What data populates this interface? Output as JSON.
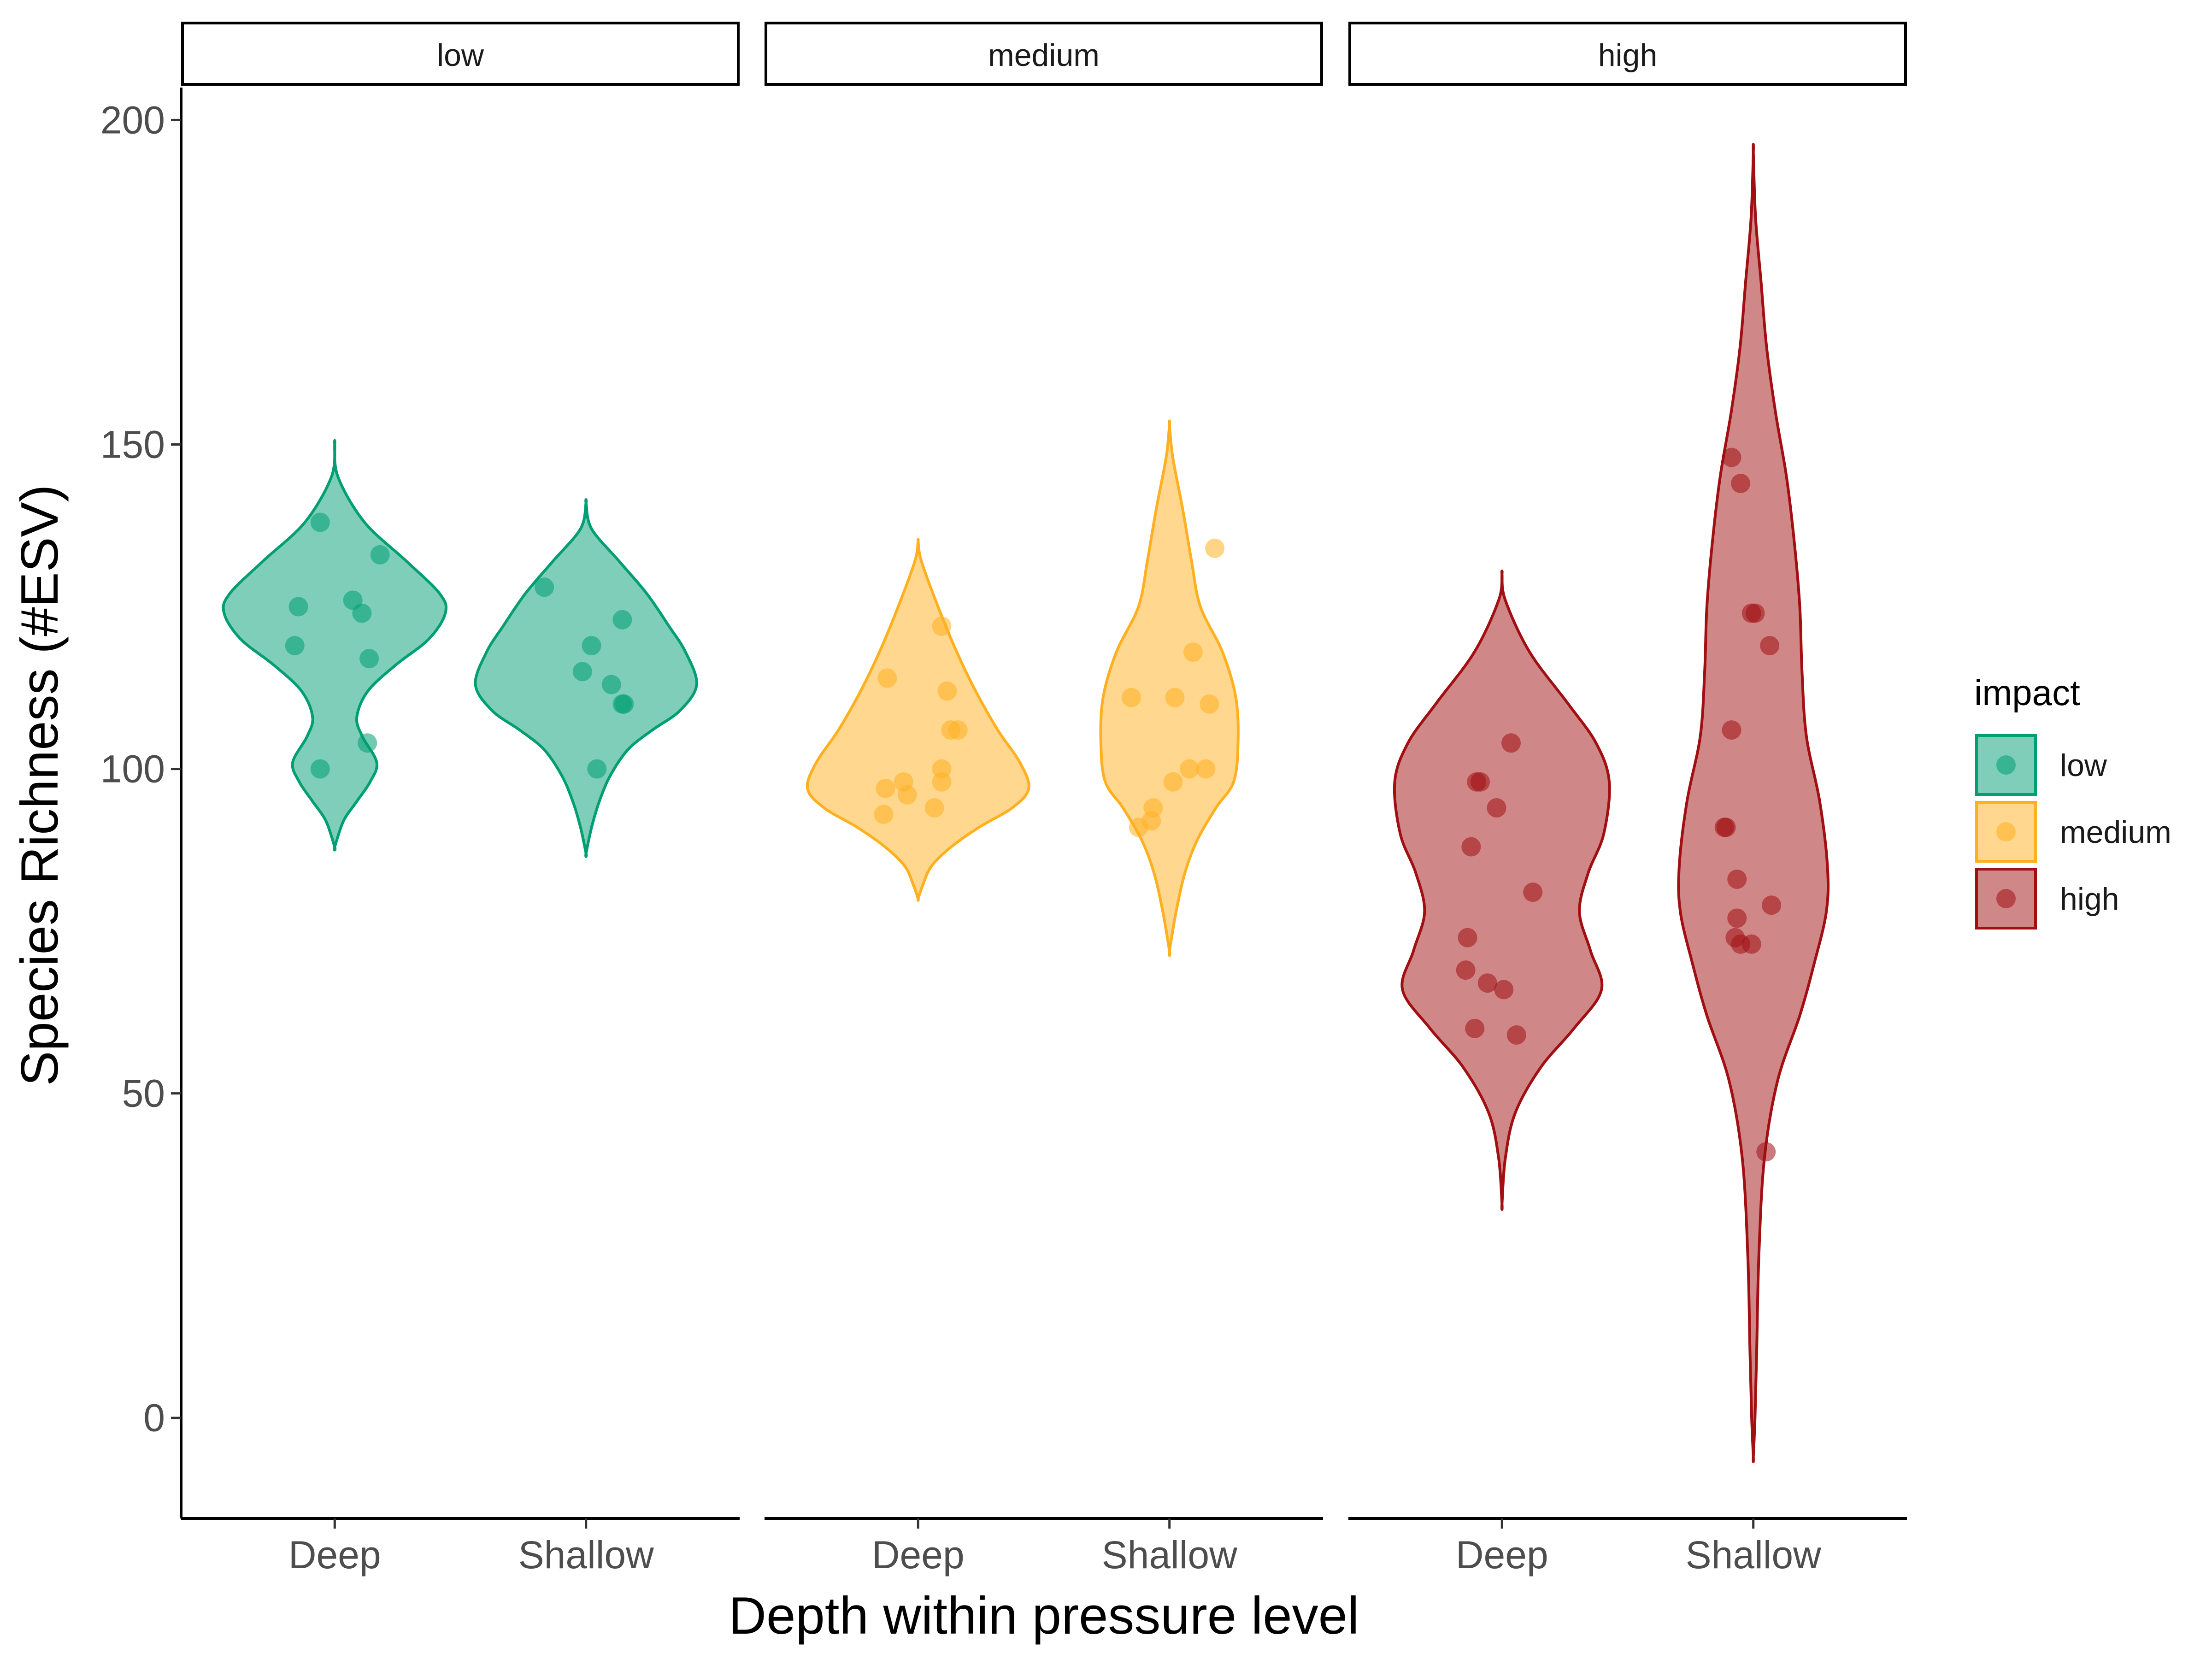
{
  "chart_data": {
    "type": "violin",
    "xlabel": "Depth within pressure level",
    "ylabel": "Species Richness (#ESV)",
    "ylim": [
      -15.5,
      205
    ],
    "yticks": [
      0,
      50,
      100,
      150,
      200
    ],
    "categories": [
      "Deep",
      "Shallow"
    ],
    "legend": {
      "title": "impact",
      "position": "right",
      "entries": [
        {
          "label": "low",
          "color": "#009E73"
        },
        {
          "label": "medium",
          "color": "#FFB020"
        },
        {
          "label": "high",
          "color": "#A10F12"
        }
      ]
    },
    "panels": [
      {
        "name": "low",
        "color": "#009E73",
        "groups": [
          {
            "category": "Deep",
            "violin": [
              [
                150,
                0
              ],
              [
                145,
                0.03
              ],
              [
                138,
                0.27
              ],
              [
                132,
                0.65
              ],
              [
                127,
                0.95
              ],
              [
                124,
                1.0
              ],
              [
                120,
                0.85
              ],
              [
                116,
                0.55
              ],
              [
                112,
                0.3
              ],
              [
                108,
                0.2
              ],
              [
                105,
                0.25
              ],
              [
                101,
                0.38
              ],
              [
                98,
                0.32
              ],
              [
                95,
                0.2
              ],
              [
                92,
                0.08
              ],
              [
                88,
                0
              ]
            ],
            "points": [
              [
                -0.08,
                138
              ],
              [
                0.25,
                133
              ],
              [
                -0.2,
                125
              ],
              [
                0.1,
                126
              ],
              [
                0.15,
                124
              ],
              [
                -0.22,
                119
              ],
              [
                0.19,
                117
              ],
              [
                0.18,
                104
              ],
              [
                -0.08,
                100
              ]
            ]
          },
          {
            "category": "Shallow",
            "violin": [
              [
                141,
                0
              ],
              [
                137,
                0.05
              ],
              [
                132,
                0.3
              ],
              [
                127,
                0.55
              ],
              [
                122,
                0.75
              ],
              [
                118,
                0.9
              ],
              [
                113,
                1.0
              ],
              [
                109,
                0.85
              ],
              [
                106,
                0.6
              ],
              [
                103,
                0.38
              ],
              [
                99,
                0.22
              ],
              [
                95,
                0.12
              ],
              [
                91,
                0.05
              ],
              [
                87,
                0
              ]
            ],
            "points": [
              [
                -0.23,
                128
              ],
              [
                0.2,
                123
              ],
              [
                0.03,
                119
              ],
              [
                -0.02,
                115
              ],
              [
                0.14,
                113
              ],
              [
                0.2,
                110
              ],
              [
                0.21,
                110
              ],
              [
                0.06,
                100
              ]
            ]
          }
        ]
      },
      {
        "name": "medium",
        "color": "#FFB020",
        "groups": [
          {
            "category": "Deep",
            "violin": [
              [
                135,
                0
              ],
              [
                132,
                0.03
              ],
              [
                125,
                0.18
              ],
              [
                118,
                0.35
              ],
              [
                112,
                0.52
              ],
              [
                106,
                0.72
              ],
              [
                101,
                0.92
              ],
              [
                97,
                1.0
              ],
              [
                94,
                0.85
              ],
              [
                91,
                0.55
              ],
              [
                88,
                0.3
              ],
              [
                85,
                0.12
              ],
              [
                82,
                0.04
              ],
              [
                80,
                0
              ]
            ],
            "points": [
              [
                -0.17,
                114
              ],
              [
                0.13,
                122
              ],
              [
                0.16,
                112
              ],
              [
                0.18,
                106
              ],
              [
                0.22,
                106
              ],
              [
                0.13,
                100
              ],
              [
                -0.08,
                98
              ],
              [
                0.13,
                98
              ],
              [
                -0.18,
                97
              ],
              [
                -0.06,
                96
              ],
              [
                0.09,
                94
              ],
              [
                -0.19,
                93
              ]
            ]
          },
          {
            "category": "Shallow",
            "violin": [
              [
                153,
                0
              ],
              [
                148,
                0.03
              ],
              [
                140,
                0.12
              ],
              [
                132,
                0.2
              ],
              [
                125,
                0.28
              ],
              [
                118,
                0.48
              ],
              [
                111,
                0.6
              ],
              [
                104,
                0.62
              ],
              [
                98,
                0.58
              ],
              [
                94,
                0.42
              ],
              [
                89,
                0.25
              ],
              [
                84,
                0.14
              ],
              [
                78,
                0.06
              ],
              [
                72,
                0
              ]
            ],
            "points": [
              [
                -0.21,
                111
              ],
              [
                0.03,
                111
              ],
              [
                0.13,
                118
              ],
              [
                0.22,
                110
              ],
              [
                0.2,
                100
              ],
              [
                0.11,
                100
              ],
              [
                0.02,
                98
              ],
              [
                -0.09,
                94
              ],
              [
                -0.1,
                92
              ],
              [
                -0.17,
                91
              ],
              [
                0.25,
                134
              ]
            ]
          }
        ]
      },
      {
        "name": "high",
        "color": "#A10F12",
        "groups": [
          {
            "category": "Deep",
            "violin": [
              [
                130,
                0
              ],
              [
                126,
                0.03
              ],
              [
                118,
                0.25
              ],
              [
                110,
                0.6
              ],
              [
                104,
                0.85
              ],
              [
                98,
                0.97
              ],
              [
                90,
                0.92
              ],
              [
                84,
                0.78
              ],
              [
                78,
                0.7
              ],
              [
                72,
                0.8
              ],
              [
                66,
                0.9
              ],
              [
                60,
                0.65
              ],
              [
                54,
                0.35
              ],
              [
                47,
                0.12
              ],
              [
                40,
                0.03
              ],
              [
                33,
                0
              ]
            ],
            "points": [
              [
                0.05,
                104
              ],
              [
                -0.14,
                98
              ],
              [
                -0.12,
                98
              ],
              [
                -0.03,
                94
              ],
              [
                -0.17,
                88
              ],
              [
                0.17,
                81
              ],
              [
                -0.19,
                74
              ],
              [
                -0.08,
                67
              ],
              [
                0.01,
                66
              ],
              [
                -0.2,
                69
              ],
              [
                -0.15,
                60
              ],
              [
                0.08,
                59
              ]
            ]
          },
          {
            "category": "Shallow",
            "violin": [
              [
                195,
                0
              ],
              [
                185,
                0.02
              ],
              [
                175,
                0.07
              ],
              [
                165,
                0.12
              ],
              [
                155,
                0.2
              ],
              [
                145,
                0.3
              ],
              [
                135,
                0.37
              ],
              [
                125,
                0.42
              ],
              [
                115,
                0.44
              ],
              [
                105,
                0.48
              ],
              [
                95,
                0.6
              ],
              [
                85,
                0.67
              ],
              [
                78,
                0.66
              ],
              [
                70,
                0.55
              ],
              [
                62,
                0.42
              ],
              [
                52,
                0.22
              ],
              [
                40,
                0.1
              ],
              [
                25,
                0.05
              ],
              [
                10,
                0.03
              ],
              [
                0,
                0.015
              ],
              [
                -6,
                0
              ]
            ],
            "points": [
              [
                -0.12,
                148
              ],
              [
                -0.07,
                144
              ],
              [
                -0.01,
                124
              ],
              [
                0.01,
                124
              ],
              [
                0.09,
                119
              ],
              [
                -0.12,
                106
              ],
              [
                -0.16,
                91
              ],
              [
                -0.15,
                91
              ],
              [
                -0.09,
                83
              ],
              [
                0.1,
                79
              ],
              [
                -0.09,
                77
              ],
              [
                -0.1,
                74
              ],
              [
                -0.07,
                73
              ],
              [
                -0.01,
                73
              ],
              [
                0.07,
                41
              ]
            ]
          }
        ]
      }
    ]
  }
}
